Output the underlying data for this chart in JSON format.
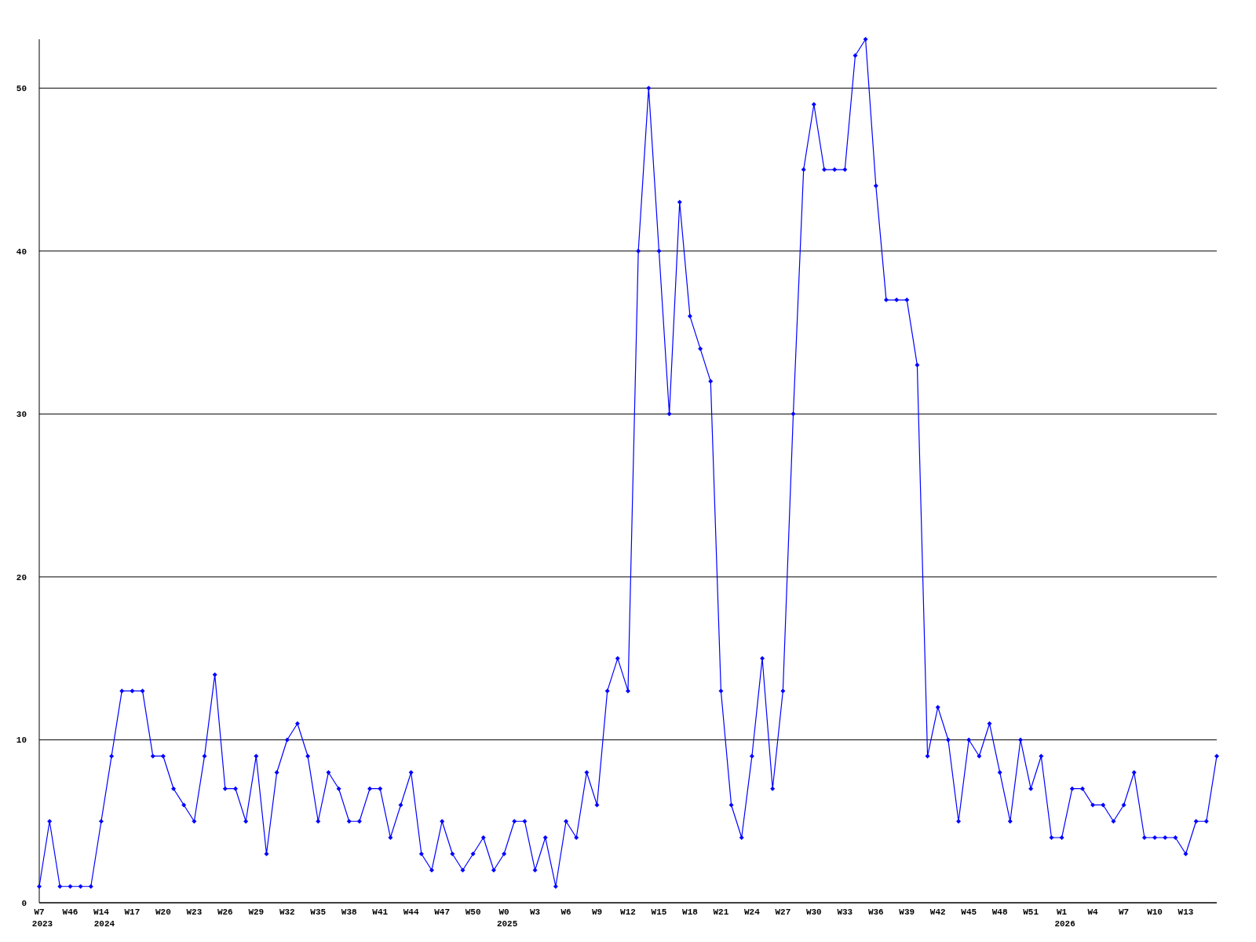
{
  "chart_data": {
    "type": "line",
    "categories": [
      "W7\n2023",
      null,
      null,
      "W46",
      null,
      null,
      "W14\n2024",
      null,
      null,
      "W17",
      null,
      null,
      "W20",
      null,
      null,
      "W23",
      null,
      null,
      "W26",
      null,
      null,
      "W29",
      null,
      null,
      "W32",
      null,
      null,
      "W35",
      null,
      null,
      "W38",
      null,
      null,
      "W41",
      null,
      null,
      "W44",
      null,
      null,
      "W47",
      null,
      null,
      "W50",
      null,
      null,
      "W0\n2025",
      null,
      null,
      "W3",
      null,
      null,
      "W6",
      null,
      null,
      "W9",
      null,
      null,
      "W12",
      null,
      null,
      "W15",
      null,
      null,
      "W18",
      null,
      null,
      "W21",
      null,
      null,
      "W24",
      null,
      null,
      "W27",
      null,
      null,
      "W30",
      null,
      null,
      "W33",
      null,
      null,
      "W36",
      null,
      null,
      "W39",
      null,
      null,
      "W42",
      null,
      null,
      "W45",
      null,
      null,
      "W48",
      null,
      null,
      "W51",
      null,
      null,
      "W1\n2026",
      null,
      null,
      "W4",
      null,
      null,
      "W7",
      null,
      null,
      "W10",
      null,
      null,
      "W13",
      null,
      null,
      null
    ],
    "series": [
      {
        "color": "#0000ff",
        "values": [
          1,
          5,
          1,
          1,
          1,
          1,
          5,
          9,
          13,
          13,
          13,
          9,
          9,
          7,
          6,
          5,
          9,
          14,
          7,
          7,
          5,
          9,
          3,
          8,
          10,
          11,
          9,
          5,
          8,
          7,
          5,
          5,
          7,
          7,
          4,
          6,
          8,
          3,
          2,
          5,
          3,
          2,
          3,
          4,
          2,
          3,
          5,
          5,
          2,
          4,
          1,
          5,
          4,
          8,
          6,
          13,
          15,
          13,
          40,
          50,
          40,
          30,
          43,
          36,
          34,
          32,
          13,
          6,
          4,
          9,
          15,
          7,
          13,
          30,
          45,
          49,
          45,
          45,
          45,
          52,
          53,
          44,
          37,
          37,
          37,
          33,
          9,
          12,
          10,
          5,
          10,
          9,
          11,
          8,
          5,
          10,
          7,
          9,
          4,
          4,
          7,
          7,
          6,
          6,
          5,
          6,
          8,
          4,
          4,
          4,
          4,
          3,
          5,
          5,
          9
        ]
      }
    ],
    "ylim": [
      0,
      53
    ],
    "yticks": [
      0,
      10,
      20,
      30,
      40,
      50
    ],
    "grid": "y",
    "marker": "diamond",
    "line_style": "solid"
  }
}
